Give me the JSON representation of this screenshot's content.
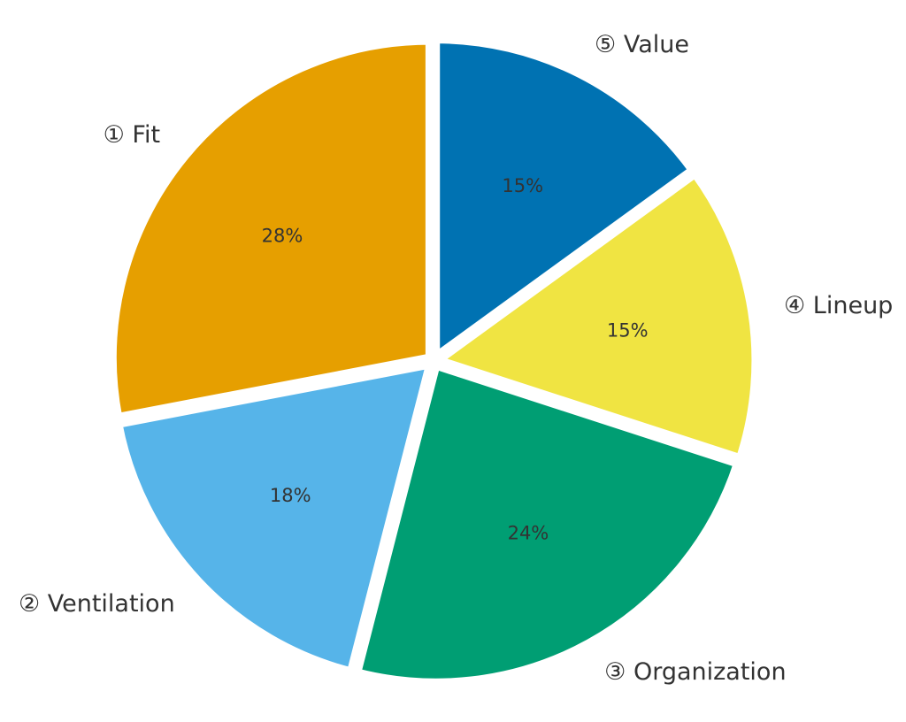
{
  "chart_data": {
    "type": "pie",
    "title": "",
    "categories": [
      "① Fit",
      "② Ventilation",
      "③ Organization",
      "④ Lineup",
      "⑤ Value"
    ],
    "values": [
      28,
      18,
      24,
      15,
      15
    ],
    "value_labels": [
      "28%",
      "18%",
      "24%",
      "15%",
      "15%"
    ],
    "colors": [
      "#E69F00",
      "#56B4E9",
      "#009E73",
      "#F0E442",
      "#0072B2"
    ],
    "start_angle": "12 o'clock",
    "direction": "counterclockwise",
    "exploded": true,
    "legend": "none"
  }
}
